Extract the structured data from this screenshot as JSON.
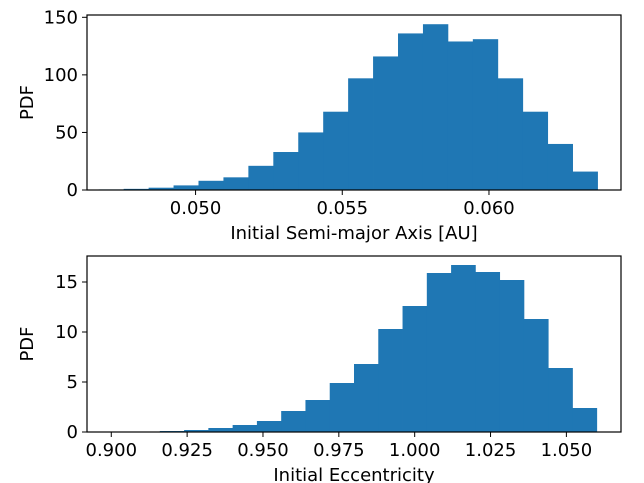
{
  "chart_data": [
    {
      "type": "bar",
      "title": "",
      "xlabel": "Initial Semi-major Axis [AU]",
      "ylabel": "PDF",
      "xlim": [
        0.0463,
        0.0645
      ],
      "ylim": [
        0,
        152
      ],
      "xticks": [
        0.05,
        0.055,
        0.06
      ],
      "xtick_labels": [
        "0.050",
        "0.055",
        "0.060"
      ],
      "yticks": [
        0,
        50,
        100,
        150
      ],
      "ytick_labels": [
        "0",
        "50",
        "100",
        "150"
      ],
      "bin_edges": [
        0.0467,
        0.04755,
        0.0484,
        0.04925,
        0.0501,
        0.05095,
        0.0518,
        0.05265,
        0.0535,
        0.05435,
        0.0552,
        0.05605,
        0.0569,
        0.05775,
        0.0586,
        0.05945,
        0.0603,
        0.06115,
        0.062,
        0.06285,
        0.0637
      ],
      "values": [
        0.5,
        1,
        2,
        4,
        8,
        11,
        21,
        33,
        50,
        68,
        97,
        116,
        136,
        144,
        129,
        131,
        97,
        68,
        40,
        16
      ],
      "color": "#1f77b4",
      "grid": false,
      "legend": "none"
    },
    {
      "type": "bar",
      "title": "",
      "xlabel": "Initial Eccentricity",
      "ylabel": "PDF",
      "xlim": [
        0.892,
        1.068
      ],
      "ylim": [
        0,
        17.6
      ],
      "xticks": [
        0.9,
        0.925,
        0.95,
        0.975,
        1.0,
        1.025,
        1.05
      ],
      "xtick_labels": [
        "0.900",
        "0.925",
        "0.950",
        "0.975",
        "1.000",
        "1.025",
        "1.050"
      ],
      "yticks": [
        0,
        5,
        10,
        15
      ],
      "ytick_labels": [
        "0",
        "5",
        "10",
        "15"
      ],
      "bin_edges": [
        0.9,
        0.908,
        0.916,
        0.924,
        0.932,
        0.94,
        0.948,
        0.956,
        0.964,
        0.972,
        0.98,
        0.988,
        0.996,
        1.004,
        1.012,
        1.02,
        1.028,
        1.036,
        1.044,
        1.052,
        1.06
      ],
      "values": [
        0.05,
        0.05,
        0.1,
        0.2,
        0.4,
        0.7,
        1.1,
        2.1,
        3.2,
        4.9,
        6.8,
        10.3,
        12.6,
        15.9,
        16.7,
        16.0,
        15.2,
        11.3,
        6.4,
        2.4
      ],
      "color": "#1f77b4",
      "grid": false,
      "legend": "none"
    }
  ]
}
